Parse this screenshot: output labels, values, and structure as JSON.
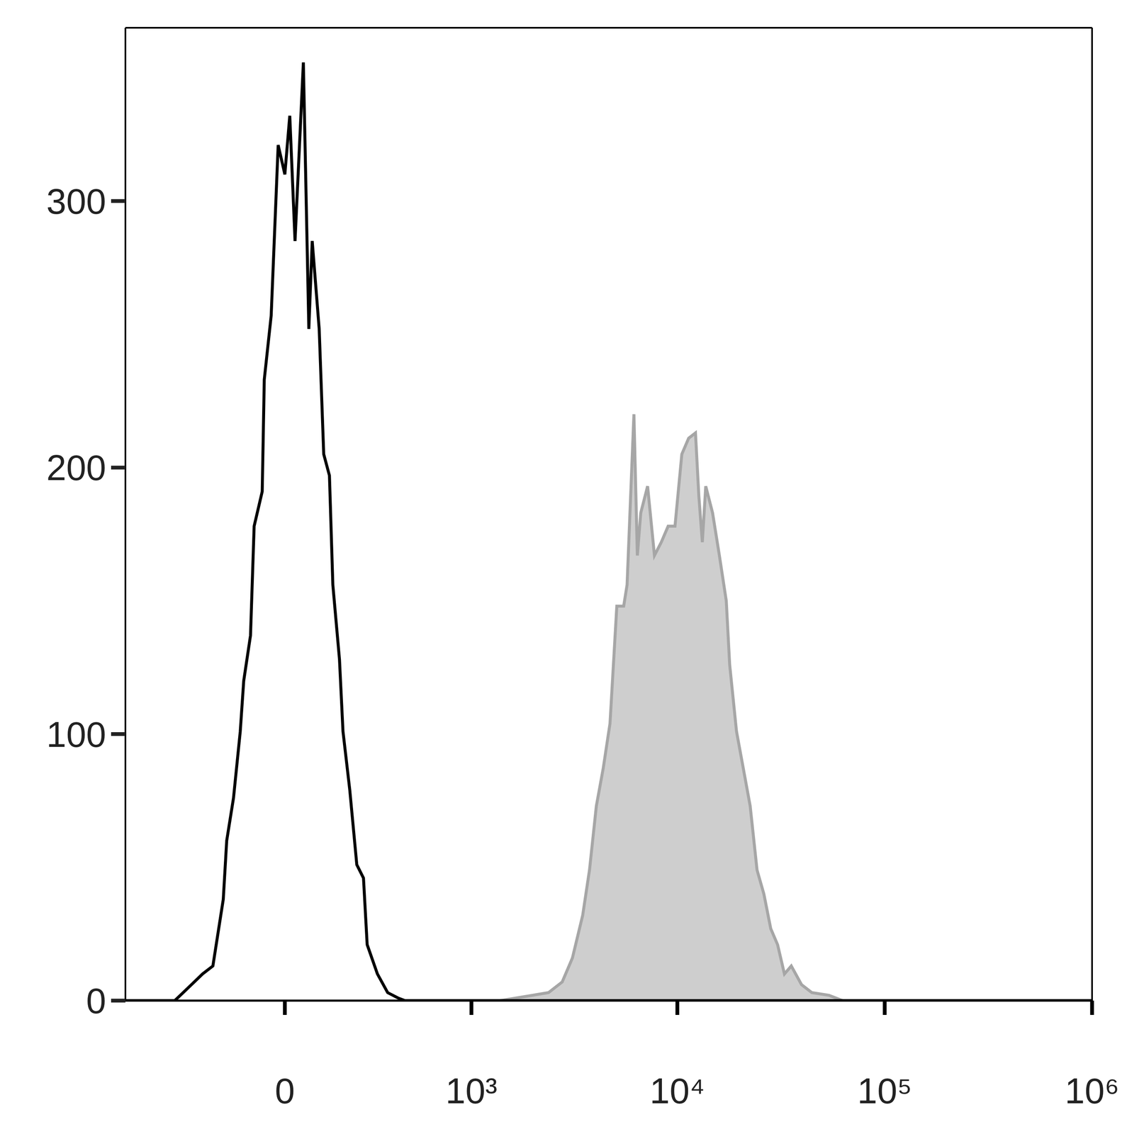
{
  "chart_data": {
    "type": "line",
    "log": "x",
    "xlim": [
      -730,
      1000000
    ],
    "xticks": [
      0,
      {
        "value": 1000,
        "label": "10³"
      },
      {
        "value": 10000,
        "label": "10⁴"
      },
      {
        "value": 100000,
        "label": "10⁵"
      },
      {
        "value": 1000000,
        "label": "10⁶"
      }
    ],
    "ylim": [
      0,
      365
    ],
    "yticks": [
      0,
      100,
      200,
      300
    ],
    "series": [
      {
        "type": "area",
        "color": "#a6a6a6",
        "x": [
          1390,
          2386,
          2779,
          3114,
          3491,
          3766,
          4064,
          4384,
          4731,
          5103,
          5508,
          5720,
          6172,
          6412,
          6660,
          7186,
          7753,
          8366,
          9027,
          9740,
          10509,
          11338,
          12230,
          12703,
          13197,
          13709,
          14784,
          15949,
          17216,
          17882,
          19290,
          20813,
          22451,
          24230,
          26138,
          28211,
          30438,
          32845,
          35430,
          39693,
          44518,
          53837,
          62669
        ],
        "values": [
          0,
          3,
          7,
          16,
          32,
          49,
          73,
          87,
          104,
          148,
          148,
          156,
          220,
          167,
          183,
          193,
          167,
          172,
          178,
          178,
          205,
          211,
          213,
          189,
          172,
          193,
          183,
          167,
          150,
          126,
          101,
          87,
          73,
          49,
          40,
          27,
          21,
          10,
          13,
          6,
          3,
          2,
          0
        ]
      },
      {
        "type": "line",
        "color": "#000000",
        "x": [
          -730,
          -397,
          -328,
          -268,
          -227,
          -189,
          -177,
          -154,
          -132,
          -121,
          -100,
          -89,
          -65,
          -59,
          -39,
          -19,
          0,
          14,
          29,
          53,
          69,
          79,
          100,
          114,
          132,
          143,
          165,
          177,
          201,
          227,
          253,
          268,
          312,
          360,
          413,
          452,
          1000000
        ],
        "values": [
          0,
          0,
          5,
          10,
          13,
          38,
          60,
          76,
          101,
          120,
          137,
          178,
          191,
          233,
          257,
          321,
          310,
          332,
          285,
          352,
          252,
          285,
          252,
          205,
          197,
          156,
          128,
          101,
          79,
          51,
          46,
          21,
          10,
          3,
          1,
          0,
          0
        ]
      }
    ]
  }
}
